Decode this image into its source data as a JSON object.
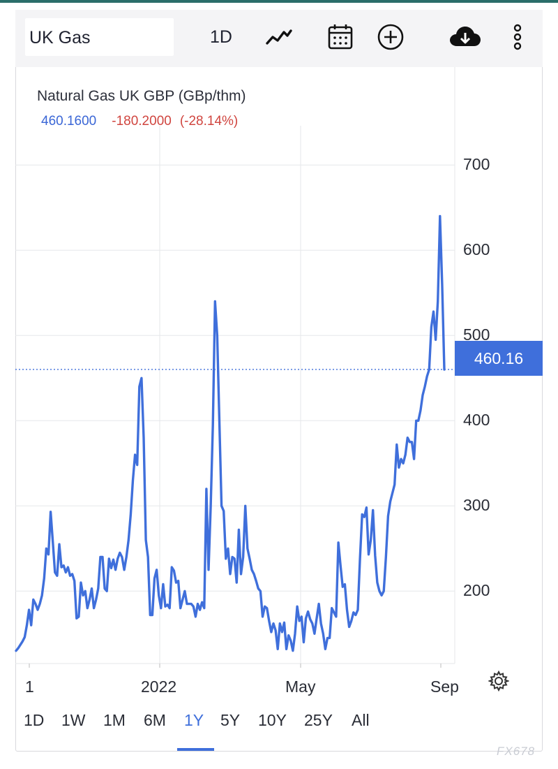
{
  "toolbar": {
    "symbol": "UK Gas",
    "interval": "1D",
    "icons": [
      "line-chart-icon",
      "calendar-icon",
      "plus-circle-icon",
      "cloud-download-icon",
      "more-vertical-icon"
    ]
  },
  "header": {
    "title": "Natural Gas UK GBP (GBp/thm)",
    "last": "460.1600",
    "change": "-180.2000",
    "change_pct": "(-28.14%)"
  },
  "price_tag": "460.16",
  "ranges": [
    "1D",
    "1W",
    "1M",
    "6M",
    "1Y",
    "5Y",
    "10Y",
    "25Y",
    "All"
  ],
  "active_range": "1Y",
  "watermark": "FX678",
  "colors": {
    "line": "#3f6fdb",
    "price_tag": "#3f6fdb",
    "down": "#d0453f",
    "up_text": "#3a66d6"
  },
  "chart_data": {
    "type": "line",
    "x_tick_labels": [
      "1",
      "2022",
      "May",
      "Sep"
    ],
    "y_tick_labels": [
      "200",
      "300",
      "400",
      "500",
      "600",
      "700"
    ],
    "yticks": [
      200,
      300,
      400,
      500,
      600,
      700
    ],
    "ylim": [
      115,
      800
    ],
    "last_value": 460.16,
    "grid": true,
    "series": [
      {
        "values": [
          130,
          133,
          137,
          141,
          146,
          160,
          178,
          160,
          190,
          185,
          178,
          185,
          195,
          215,
          250,
          243,
          293,
          258,
          222,
          218,
          255,
          228,
          230,
          222,
          228,
          218,
          220,
          212,
          168,
          170,
          210,
          195,
          200,
          180,
          190,
          203,
          180,
          190,
          203,
          240,
          240,
          203,
          200,
          238,
          227,
          237,
          225,
          238,
          245,
          240,
          225,
          240,
          260,
          290,
          330,
          360,
          348,
          440,
          450,
          380,
          260,
          240,
          172,
          172,
          215,
          225,
          195,
          180,
          208,
          182,
          184,
          180,
          228,
          224,
          210,
          212,
          180,
          190,
          200,
          185,
          185,
          185,
          182,
          170,
          185,
          178,
          187,
          180,
          320,
          225,
          300,
          395,
          540,
          500,
          400,
          300,
          294,
          238,
          250,
          220,
          240,
          238,
          210,
          272,
          220,
          240,
          300,
          250,
          238,
          225,
          220,
          212,
          203,
          200,
          170,
          182,
          180,
          165,
          152,
          162,
          154,
          132,
          162,
          152,
          163,
          132,
          148,
          142,
          130,
          150,
          182,
          165,
          170,
          140,
          168,
          176,
          167,
          162,
          150,
          168,
          185,
          162,
          150,
          132,
          145,
          145,
          180,
          175,
          170,
          257,
          230,
          205,
          208,
          178,
          158,
          165,
          175,
          172,
          178,
          238,
          290,
          287,
          298,
          243,
          260,
          295,
          242,
          210,
          200,
          195,
          200,
          240,
          288,
          305,
          315,
          325,
          372,
          345,
          355,
          350,
          360,
          380,
          375,
          375,
          355,
          400,
          400,
          412,
          430,
          440,
          452,
          460,
          510,
          528,
          495,
          540,
          640,
          560,
          460
        ]
      }
    ]
  }
}
